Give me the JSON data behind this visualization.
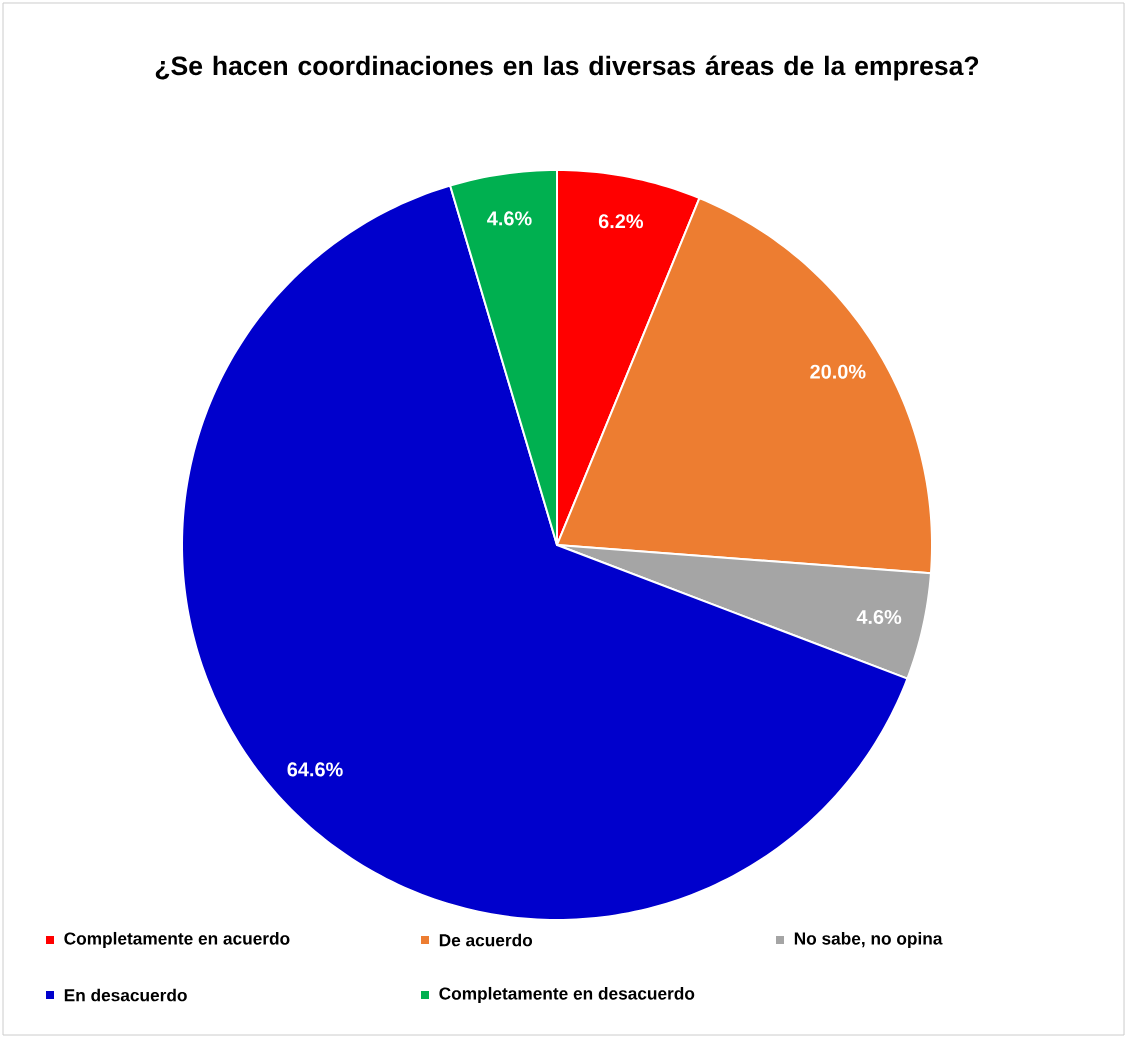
{
  "chart_data": {
    "type": "pie",
    "title": "¿Se hacen coordinaciones en las diversas áreas de la empresa?",
    "categories": [
      "Completamente en acuerdo",
      "De acuerdo",
      "No sabe, no opina",
      "En desacuerdo",
      "Completamente en desacuerdo"
    ],
    "values": [
      6.2,
      20.0,
      4.6,
      64.6,
      4.6
    ],
    "colors": [
      "#ff0000",
      "#ed7d31",
      "#a5a5a5",
      "#0000cc",
      "#00b050"
    ],
    "value_labels": [
      "6.2%",
      "20.0%",
      "4.6%",
      "64.6%",
      "4.6%"
    ],
    "legend": "bottom"
  }
}
